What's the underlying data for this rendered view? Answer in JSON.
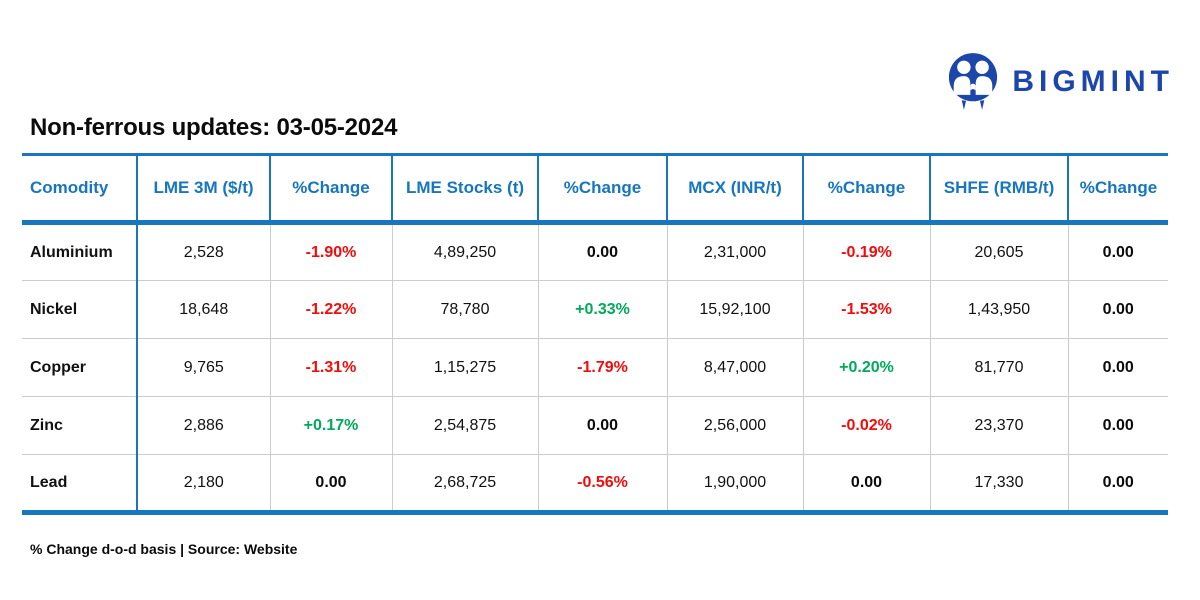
{
  "logo": {
    "text": "BIGMINT",
    "icon": "bigmint-people-drop-icon"
  },
  "title": "Non-ferrous updates: 03-05-2024",
  "footnote": "% Change d-o-d basis | Source: Website",
  "colors": {
    "table_blue": "#1776BE",
    "negative_red": "#F40B0B",
    "positive_green": "#00A95C",
    "neutral_black": "#0B0B0B",
    "separator_gray": "#CCCCCC",
    "logo_navy": "#1C46A9"
  },
  "chart_data": {
    "type": "table",
    "title": "Non-ferrous updates: 03-05-2024",
    "columns": [
      "Comodity",
      "LME 3M ($/t)",
      "%Change",
      "LME Stocks (t)",
      "%Change",
      "MCX (INR/t)",
      "%Change",
      "SHFE (RMB/t)",
      "%Change"
    ],
    "rows": [
      [
        "Aluminium",
        "2,528",
        "-1.90%",
        "4,89,250",
        "0.00",
        "2,31,000",
        "-0.19%",
        "20,605",
        "0.00"
      ],
      [
        "Nickel",
        "18,648",
        "-1.22%",
        "78,780",
        "+0.33%",
        "15,92,100",
        "-1.53%",
        "1,43,950",
        "0.00"
      ],
      [
        "Copper",
        "9,765",
        "-1.31%",
        "1,15,275",
        "-1.79%",
        "8,47,000",
        "+0.20%",
        "81,770",
        "0.00"
      ],
      [
        "Zinc",
        "2,886",
        "+0.17%",
        "2,54,875",
        "0.00",
        "2,56,000",
        "-0.02%",
        "23,370",
        "0.00"
      ],
      [
        "Lead",
        "2,180",
        "0.00",
        "2,68,725",
        "-0.56%",
        "1,90,000",
        "0.00",
        "17,330",
        "0.00"
      ]
    ]
  }
}
